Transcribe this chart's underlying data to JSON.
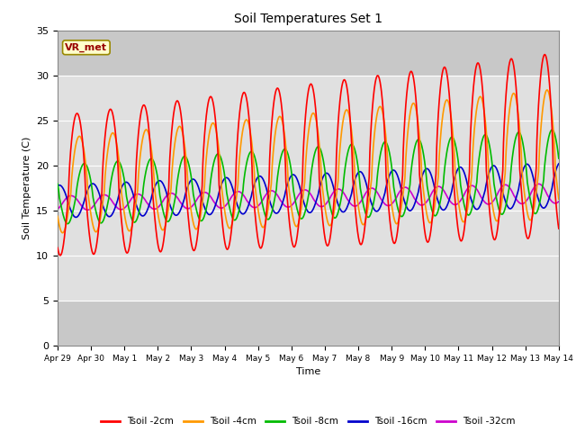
{
  "title": "Soil Temperatures Set 1",
  "xlabel": "Time",
  "ylabel": "Soil Temperature (C)",
  "ylim": [
    0,
    35
  ],
  "annotation_label": "VR_met",
  "plot_bg_color": "#c8c8c8",
  "shaded_color": "#e0e0e0",
  "shaded_region": [
    5,
    30
  ],
  "x_tick_labels": [
    "Apr 29",
    "Apr 30",
    "May 1",
    "May 2",
    "May 3",
    "May 4",
    "May 5",
    "May 6",
    "May 7",
    "May 8",
    "May 9",
    "May 10",
    "May 11",
    "May 12",
    "May 13",
    "May 14"
  ],
  "series": [
    {
      "label": "Tsoil -2cm",
      "color": "#ff0000",
      "lw": 1.2
    },
    {
      "label": "Tsoil -4cm",
      "color": "#ff9900",
      "lw": 1.2
    },
    {
      "label": "Tsoil -8cm",
      "color": "#00bb00",
      "lw": 1.2
    },
    {
      "label": "Tsoil -16cm",
      "color": "#0000cc",
      "lw": 1.2
    },
    {
      "label": "Tsoil -32cm",
      "color": "#cc00cc",
      "lw": 1.2
    }
  ]
}
